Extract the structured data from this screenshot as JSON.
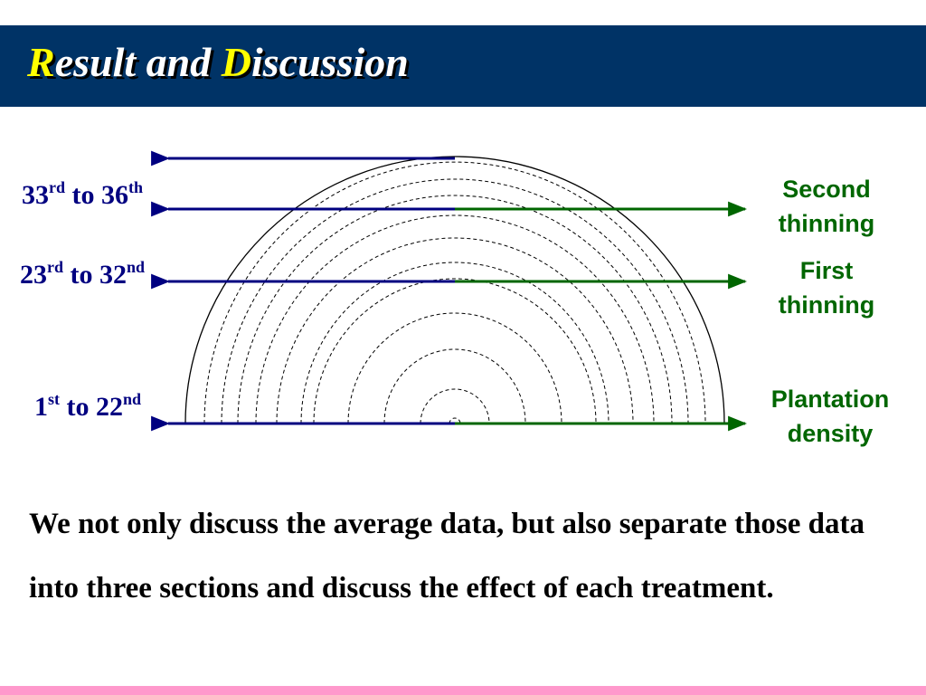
{
  "header": {
    "title_initial_1": "R",
    "title_rest_1": "esult and ",
    "title_initial_2": "D",
    "title_rest_2": "iscussion"
  },
  "diagram": {
    "ranges": [
      {
        "start": "33",
        "start_sup": "rd",
        "to": " to 36",
        "end_sup": "th"
      },
      {
        "start": "23",
        "start_sup": "rd",
        "to": " to 32",
        "end_sup": "nd"
      },
      {
        "start": "1",
        "start_sup": "st",
        "to": " to 22",
        "end_sup": "nd"
      }
    ],
    "stages": [
      {
        "line1": "Second",
        "line2": "thinning"
      },
      {
        "line1": "First",
        "line2": "thinning"
      },
      {
        "line1": "Plantation",
        "line2": "density"
      }
    ]
  },
  "description": "We not only discuss the average data, but also separate those data into three sections and discuss the effect of each treatment.",
  "colors": {
    "header_bg": "#003366",
    "title_accent": "#ffff00",
    "range_label": "#000080",
    "stage_label": "#006600",
    "left_arrow": "#000080",
    "right_arrow": "#006600",
    "bottom_band": "#ff99cc"
  }
}
